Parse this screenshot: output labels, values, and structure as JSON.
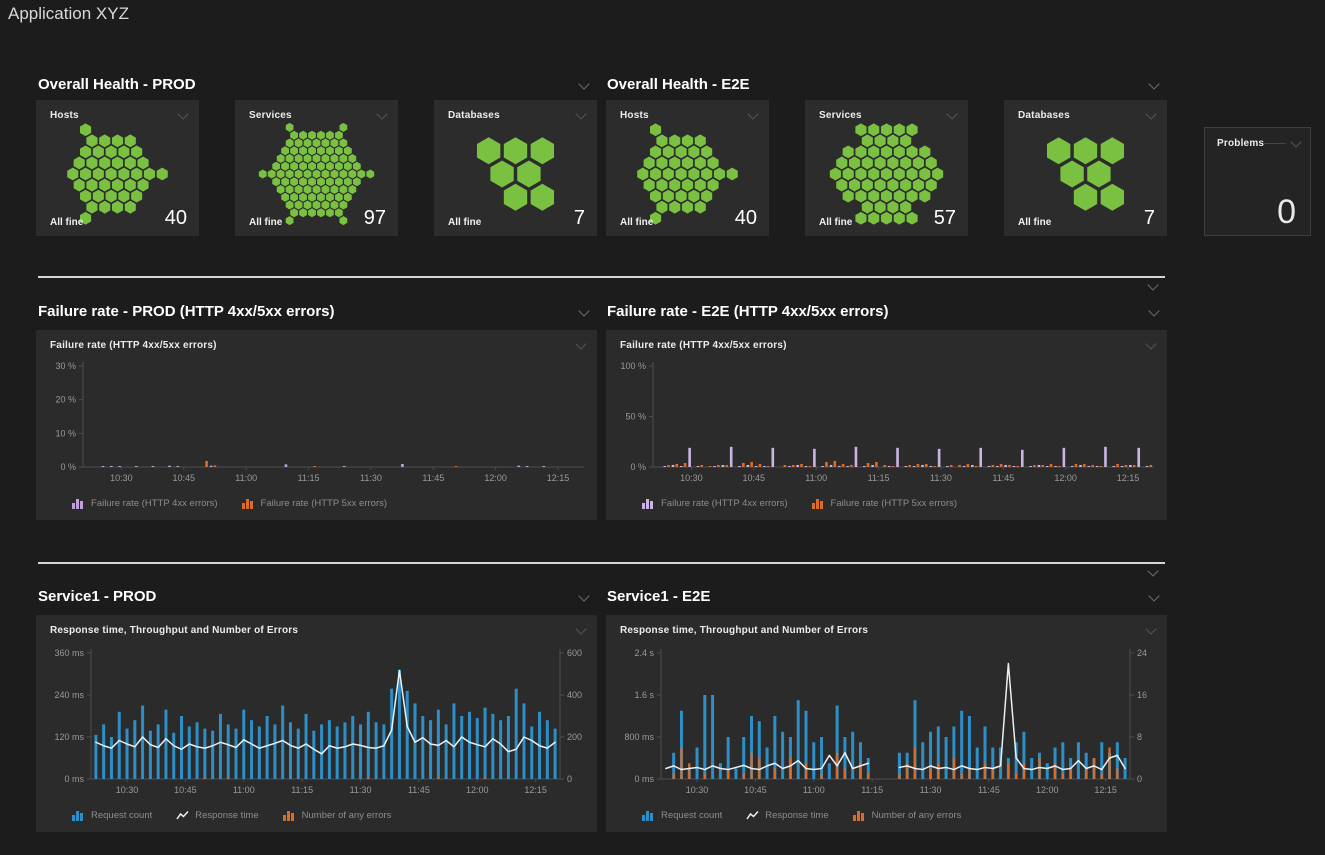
{
  "page": {
    "title": "Application XYZ"
  },
  "colors": {
    "healthy_green": "#7ac142",
    "request_blue": "#2e8fc7",
    "error_orange": "#d96c28",
    "http4xx_purple": "#bda3da",
    "response_line": "#e9f1f6",
    "divider": "#d4d4d4"
  },
  "sections": {
    "health_prod": {
      "header": "Overall Health - PROD",
      "tiles": [
        {
          "title": "Hosts",
          "status": "All fine",
          "count": "40",
          "hex_count": 40
        },
        {
          "title": "Services",
          "status": "All fine",
          "count": "97",
          "hex_count": 97
        },
        {
          "title": "Databases",
          "status": "All fine",
          "count": "7",
          "hex_count": 7,
          "hex_layout": [
            [
              0,
              0
            ],
            [
              1,
              0
            ],
            [
              2,
              0
            ],
            [
              0.5,
              1
            ],
            [
              1.5,
              1
            ],
            [
              1,
              2
            ],
            [
              2,
              2
            ]
          ]
        }
      ]
    },
    "health_e2e": {
      "header": "Overall Health - E2E",
      "tiles": [
        {
          "title": "Hosts",
          "status": "All fine",
          "count": "40",
          "hex_count": 40
        },
        {
          "title": "Services",
          "status": "All fine",
          "count": "57",
          "hex_count": 57
        },
        {
          "title": "Databases",
          "status": "All fine",
          "count": "7",
          "hex_count": 7,
          "hex_layout": [
            [
              0,
              0
            ],
            [
              1,
              0
            ],
            [
              2,
              0
            ],
            [
              0.5,
              1
            ],
            [
              1.5,
              1
            ],
            [
              1,
              2
            ],
            [
              2,
              2
            ]
          ]
        }
      ]
    },
    "problems": {
      "title": "Problems",
      "count": "0"
    },
    "failure_prod": {
      "header": "Failure rate - PROD (HTTP 4xx/5xx errors)"
    },
    "failure_e2e": {
      "header": "Failure rate - E2E (HTTP 4xx/5xx errors)"
    },
    "service_prod": {
      "header": "Service1 - PROD"
    },
    "service_e2e": {
      "header": "Service1 - E2E"
    }
  },
  "chart_data": [
    {
      "type": "bar",
      "title": "Failure rate (HTTP 4xx/5xx errors)",
      "x_start": "10:22",
      "x_step_min": 2,
      "points": 60,
      "x_ticks": [
        {
          "min": 8,
          "label": "10:30"
        },
        {
          "min": 23,
          "label": "10:45"
        },
        {
          "min": 38,
          "label": "11:00"
        },
        {
          "min": 53,
          "label": "11:15"
        },
        {
          "min": 68,
          "label": "11:30"
        },
        {
          "min": 83,
          "label": "11:45"
        },
        {
          "min": 98,
          "label": "12:00"
        },
        {
          "min": 113,
          "label": "12:15"
        }
      ],
      "left_axis": {
        "max": 30,
        "ticks": [
          {
            "v": 0,
            "label": "0 %"
          },
          {
            "v": 10,
            "label": "10 %"
          },
          {
            "v": 20,
            "label": "20 %"
          },
          {
            "v": 30,
            "label": "30 %"
          }
        ]
      },
      "grid": false,
      "legend_position": "bottom",
      "series": [
        {
          "name": "Failure rate (HTTP 4xx errors)",
          "type": "bar",
          "axis": "left",
          "color": "#bda3da",
          "values": [
            0,
            0,
            0.2,
            0.3,
            0.2,
            0,
            0.2,
            0,
            0.3,
            0,
            0.4,
            0.3,
            0,
            0,
            0,
            0.4,
            0,
            0,
            0,
            0,
            0,
            0,
            0,
            0,
            0.8,
            0,
            0,
            0,
            0,
            0,
            0,
            0.3,
            0,
            0,
            0,
            0,
            0,
            0,
            0.9,
            0,
            0,
            0,
            0,
            0,
            0,
            0,
            0,
            0,
            0,
            0,
            0,
            0,
            0.4,
            0.3,
            0,
            0.2,
            0,
            0,
            0,
            0
          ]
        },
        {
          "name": "Failure rate (HTTP 5xx errors)",
          "type": "bar",
          "axis": "left",
          "color": "#d96c28",
          "values": [
            0,
            0,
            0,
            0,
            0,
            0,
            0,
            0,
            0,
            0,
            0,
            0,
            0,
            0,
            1.8,
            0.5,
            0,
            0,
            0,
            0,
            0,
            0,
            0,
            0,
            0,
            0,
            0,
            0.2,
            0,
            0,
            0,
            0,
            0,
            0,
            0,
            0,
            0,
            0,
            0,
            0,
            0,
            0,
            0,
            0,
            0.2,
            0,
            0,
            0,
            0,
            0,
            0,
            0,
            0,
            0,
            0,
            0,
            0,
            0,
            0,
            0
          ]
        }
      ]
    },
    {
      "type": "bar",
      "title": "Failure rate (HTTP 4xx/5xx errors)",
      "x_start": "10:22",
      "x_step_min": 2,
      "points": 60,
      "x_ticks": [
        {
          "min": 8,
          "label": "10:30"
        },
        {
          "min": 23,
          "label": "10:45"
        },
        {
          "min": 38,
          "label": "11:00"
        },
        {
          "min": 53,
          "label": "11:15"
        },
        {
          "min": 68,
          "label": "11:30"
        },
        {
          "min": 83,
          "label": "11:45"
        },
        {
          "min": 98,
          "label": "12:00"
        },
        {
          "min": 113,
          "label": "12:15"
        }
      ],
      "left_axis": {
        "max": 100,
        "ticks": [
          {
            "v": 0,
            "label": "0 %"
          },
          {
            "v": 50,
            "label": "50 %"
          },
          {
            "v": 100,
            "label": "100 %"
          }
        ]
      },
      "grid": false,
      "legend_position": "bottom",
      "series": [
        {
          "name": "Failure rate (HTTP 4xx errors)",
          "type": "bar",
          "axis": "left",
          "color": "#c9b4e4",
          "values": [
            0,
            1,
            2,
            1,
            19,
            1,
            0,
            1,
            2,
            20,
            1,
            2,
            1,
            1,
            19,
            0,
            1,
            2,
            1,
            18,
            1,
            2,
            1,
            1,
            20,
            1,
            2,
            0,
            1,
            19,
            1,
            1,
            2,
            1,
            18,
            1,
            0,
            1,
            2,
            19,
            1,
            1,
            2,
            1,
            17,
            1,
            2,
            1,
            1,
            19,
            1,
            2,
            1,
            1,
            20,
            1,
            1,
            2,
            19,
            1
          ]
        },
        {
          "name": "Failure rate (HTTP 5xx errors)",
          "type": "bar",
          "axis": "left",
          "color": "#d96c28",
          "values": [
            0,
            2,
            3,
            4,
            0,
            2,
            1,
            2,
            2,
            0,
            4,
            5,
            3,
            1,
            0,
            2,
            2,
            3,
            1,
            0,
            5,
            6,
            3,
            2,
            0,
            4,
            5,
            2,
            1,
            0,
            2,
            3,
            3,
            1,
            0,
            2,
            2,
            3,
            1,
            0,
            2,
            3,
            2,
            1,
            0,
            2,
            2,
            3,
            1,
            0,
            3,
            3,
            2,
            1,
            0,
            3,
            2,
            2,
            0,
            2
          ]
        }
      ]
    },
    {
      "type": "combo",
      "title": "Response time, Throughput and Number of Errors",
      "x_start": "10:22",
      "x_step_min": 2,
      "points": 60,
      "x_ticks": [
        {
          "min": 8,
          "label": "10:30"
        },
        {
          "min": 23,
          "label": "10:45"
        },
        {
          "min": 38,
          "label": "11:00"
        },
        {
          "min": 53,
          "label": "11:15"
        },
        {
          "min": 68,
          "label": "11:30"
        },
        {
          "min": 83,
          "label": "11:45"
        },
        {
          "min": 98,
          "label": "12:00"
        },
        {
          "min": 113,
          "label": "12:15"
        }
      ],
      "left_axis": {
        "max": 360,
        "ticks": [
          {
            "v": 0,
            "label": "0 ms"
          },
          {
            "v": 120,
            "label": "120 ms"
          },
          {
            "v": 240,
            "label": "240 ms"
          },
          {
            "v": 360,
            "label": "360 ms"
          }
        ]
      },
      "right_axis": {
        "max": 600,
        "ticks": [
          {
            "v": 0,
            "label": "0"
          },
          {
            "v": 200,
            "label": "200"
          },
          {
            "v": 400,
            "label": "400"
          },
          {
            "v": 600,
            "label": "600"
          }
        ]
      },
      "grid": false,
      "legend_position": "bottom",
      "series": [
        {
          "name": "Request count",
          "type": "bar",
          "axis": "right",
          "color": "#2e8fc7",
          "values": [
            210,
            260,
            200,
            320,
            240,
            280,
            350,
            230,
            260,
            330,
            220,
            300,
            250,
            270,
            240,
            230,
            310,
            260,
            240,
            330,
            280,
            250,
            300,
            260,
            350,
            270,
            240,
            310,
            230,
            260,
            280,
            250,
            270,
            300,
            260,
            320,
            270,
            260,
            430,
            520,
            420,
            360,
            300,
            280,
            330,
            260,
            360,
            300,
            320,
            290,
            340,
            310,
            280,
            300,
            430,
            360,
            250,
            320,
            280,
            240
          ]
        },
        {
          "name": "Number of any errors",
          "type": "bar",
          "axis": "right",
          "color": "#d96c28",
          "values": [
            0,
            0,
            0,
            0,
            0,
            0,
            0,
            0,
            0,
            0,
            0,
            0,
            0,
            0,
            8,
            0,
            0,
            4,
            0,
            0,
            0,
            0,
            0,
            0,
            0,
            0,
            0,
            0,
            0,
            0,
            0,
            0,
            0,
            0,
            0,
            5,
            0,
            0,
            0,
            0,
            0,
            0,
            0,
            0,
            3,
            0,
            0,
            0,
            0,
            0,
            2,
            0,
            0,
            0,
            0,
            0,
            0,
            0,
            0,
            0
          ]
        },
        {
          "name": "Response time",
          "type": "line",
          "axis": "left",
          "color": "#e9f1f6",
          "values": [
            105,
            95,
            88,
            110,
            100,
            92,
            120,
            98,
            90,
            115,
            95,
            85,
            100,
            92,
            88,
            95,
            105,
            98,
            90,
            112,
            100,
            88,
            95,
            102,
            110,
            96,
            88,
            100,
            85,
            72,
            95,
            88,
            92,
            100,
            96,
            90,
            88,
            95,
            140,
            310,
            150,
            105,
            118,
            100,
            96,
            110,
            92,
            120,
            105,
            98,
            92,
            115,
            100,
            78,
            85,
            120,
            110,
            95,
            88,
            105
          ]
        }
      ],
      "legend_order": [
        0,
        2,
        1
      ]
    },
    {
      "type": "combo",
      "title": "Response time, Throughput and Number of Errors",
      "x_start": "10:22",
      "x_step_min": 2,
      "points": 60,
      "x_ticks": [
        {
          "min": 8,
          "label": "10:30"
        },
        {
          "min": 23,
          "label": "10:45"
        },
        {
          "min": 38,
          "label": "11:00"
        },
        {
          "min": 53,
          "label": "11:15"
        },
        {
          "min": 68,
          "label": "11:30"
        },
        {
          "min": 83,
          "label": "11:45"
        },
        {
          "min": 98,
          "label": "12:00"
        },
        {
          "min": 113,
          "label": "12:15"
        }
      ],
      "left_axis": {
        "max": 2400,
        "ticks": [
          {
            "v": 0,
            "label": "0 ms"
          },
          {
            "v": 800,
            "label": "800 ms"
          },
          {
            "v": 1600,
            "label": "1.6 s"
          },
          {
            "v": 2400,
            "label": "2.4 s"
          }
        ]
      },
      "right_axis": {
        "max": 24,
        "ticks": [
          {
            "v": 0,
            "label": "0"
          },
          {
            "v": 8,
            "label": "8"
          },
          {
            "v": 16,
            "label": "16"
          },
          {
            "v": 24,
            "label": "24"
          }
        ]
      },
      "grid": false,
      "legend_position": "bottom",
      "series": [
        {
          "name": "Request count",
          "type": "bar",
          "axis": "right",
          "color": "#2e8fc7",
          "values": [
            0,
            5,
            13,
            2,
            6,
            16,
            16,
            3,
            8,
            2,
            8,
            12,
            11,
            6,
            12,
            9,
            8,
            15,
            13,
            7,
            8,
            3,
            14,
            8,
            9,
            7,
            4,
            0,
            0,
            0,
            5,
            5,
            15,
            7,
            9,
            10,
            8,
            10,
            13,
            12,
            6,
            10,
            6,
            6,
            4,
            7,
            9,
            4,
            5,
            3,
            6,
            7,
            4,
            7,
            5,
            4,
            7,
            5,
            7,
            4
          ]
        },
        {
          "name": "Number of any errors",
          "type": "bar",
          "axis": "right",
          "color": "#d96c28",
          "values": [
            0,
            1,
            6,
            3,
            0,
            1,
            0,
            0,
            2,
            0,
            1,
            5,
            4,
            0,
            2,
            0,
            4,
            0,
            3,
            0,
            1,
            0,
            5,
            2,
            0,
            3,
            1,
            0,
            0,
            0,
            1,
            3,
            6,
            0,
            2,
            3,
            0,
            4,
            1,
            2,
            0,
            3,
            2,
            0,
            3,
            1,
            3,
            0,
            4,
            0,
            3,
            1,
            2,
            0,
            2,
            4,
            1,
            6,
            2,
            0
          ]
        },
        {
          "name": "Response time",
          "type": "line",
          "axis": "left",
          "color": "#e9f1f6",
          "values": [
            200,
            250,
            180,
            200,
            220,
            180,
            250,
            200,
            180,
            220,
            260,
            200,
            180,
            250,
            300,
            200,
            250,
            350,
            200,
            180,
            200,
            450,
            250,
            500,
            200,
            250,
            300,
            null,
            null,
            null,
            220,
            250,
            200,
            180,
            250,
            200,
            220,
            180,
            250,
            200,
            180,
            220,
            200,
            250,
            2200,
            400,
            200,
            180,
            220,
            200,
            250,
            180,
            200,
            350,
            200,
            250,
            180,
            400,
            450,
            200
          ]
        }
      ],
      "legend_order": [
        0,
        2,
        1
      ]
    }
  ]
}
